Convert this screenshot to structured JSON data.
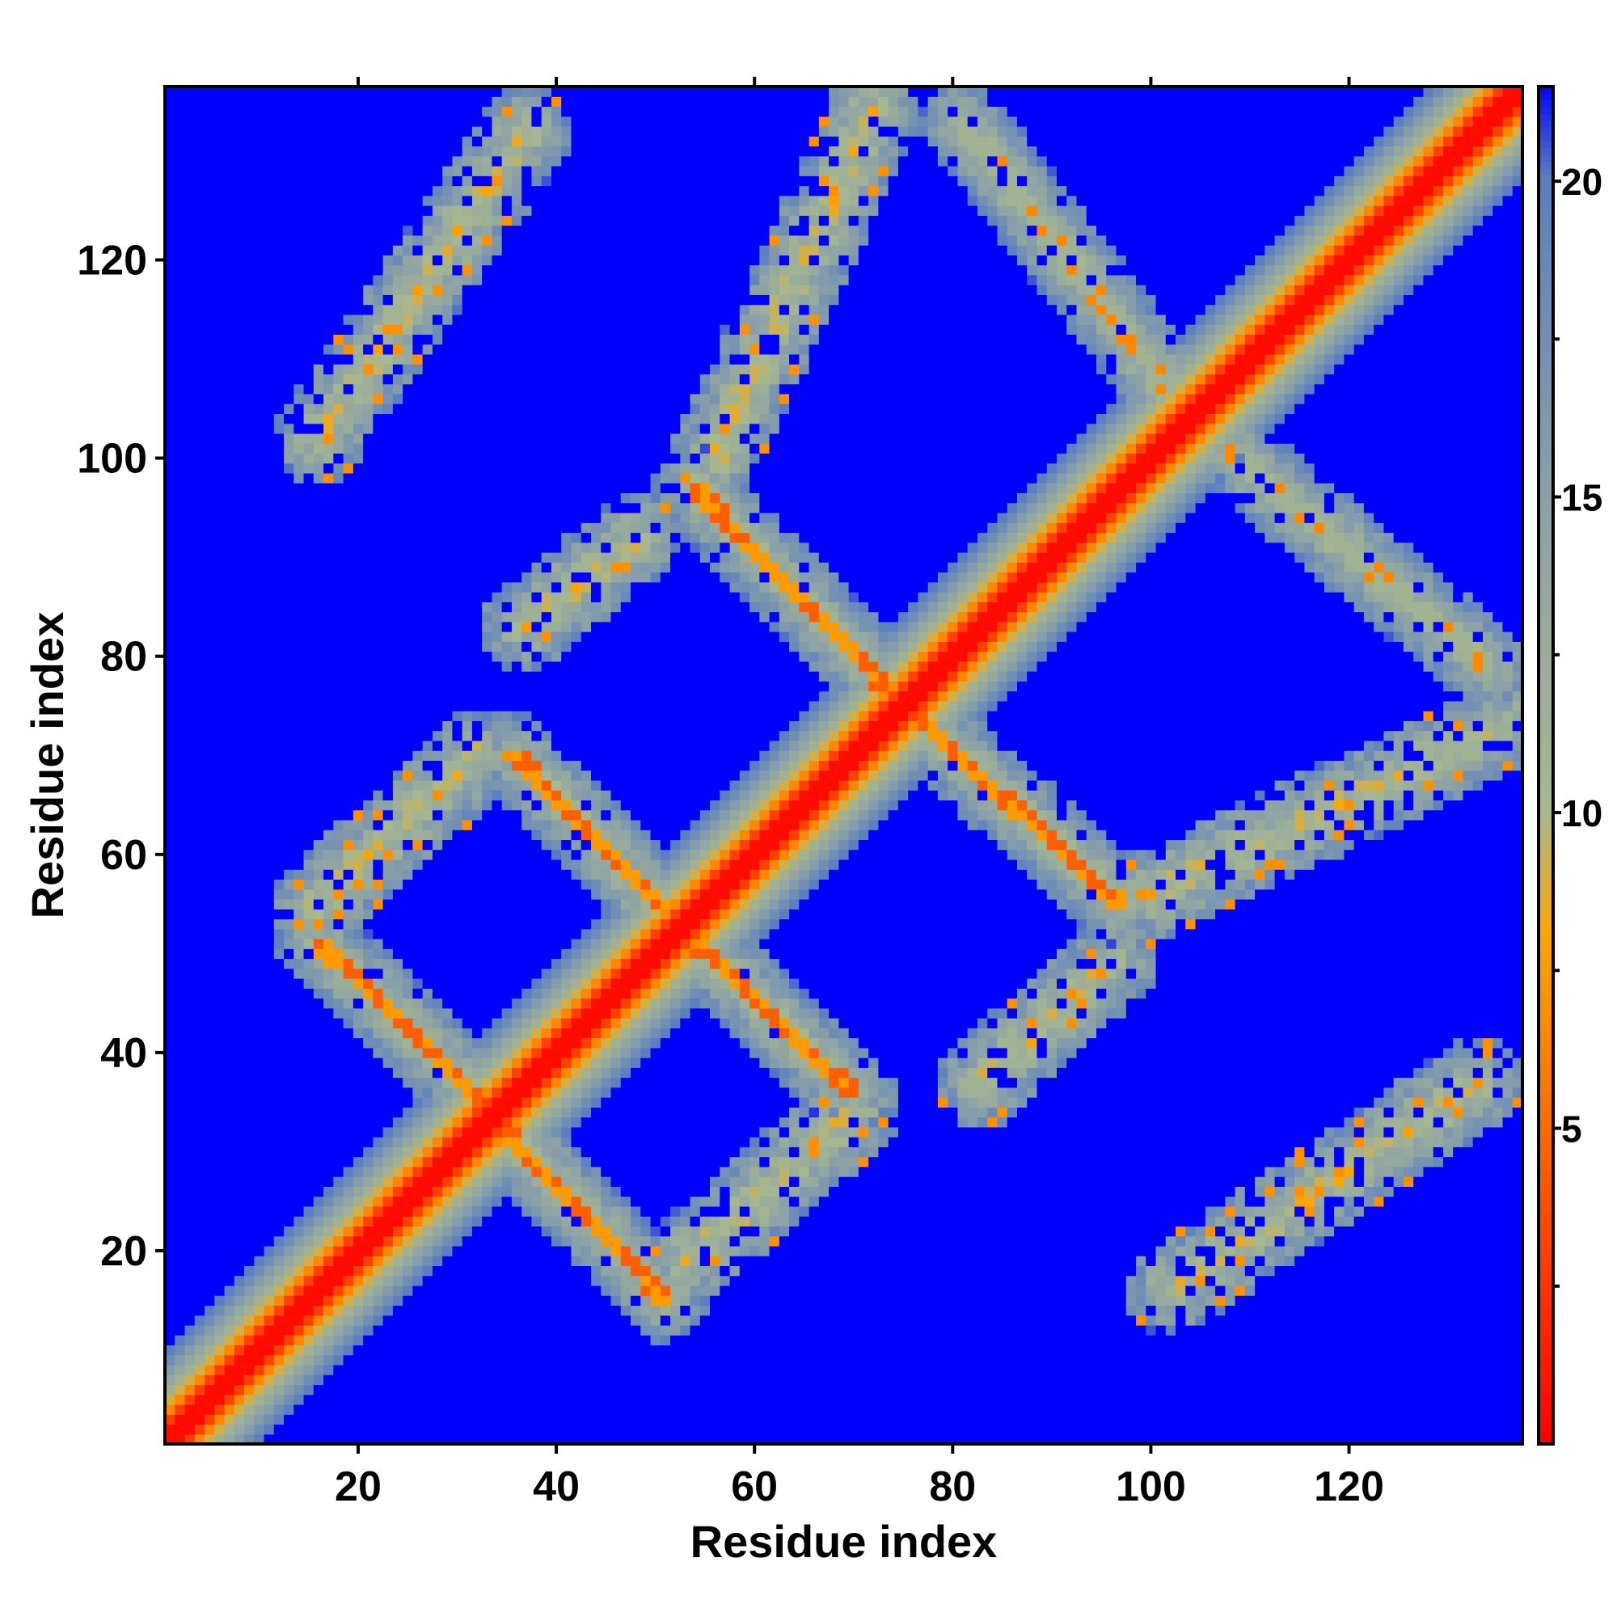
{
  "chart_data": {
    "type": "heatmap",
    "title": "",
    "xlabel": "Residue index",
    "ylabel": "Residue index",
    "xlim": [
      1,
      137
    ],
    "ylim": [
      1,
      137
    ],
    "x_ticks": [
      20,
      40,
      60,
      80,
      100,
      120
    ],
    "y_ticks": [
      20,
      40,
      60,
      80,
      100,
      120
    ],
    "colorbar": {
      "ticks": [
        5,
        10,
        15,
        20
      ],
      "range": [
        0,
        21.5
      ],
      "colors": [
        {
          "value": 0,
          "color": "#ff0000"
        },
        {
          "value": 5,
          "color": "#ff6a00"
        },
        {
          "value": 8,
          "color": "#ffa500"
        },
        {
          "value": 10,
          "color": "#a8b88e"
        },
        {
          "value": 15,
          "color": "#8aa0a8"
        },
        {
          "value": 20,
          "color": "#5b7fc0"
        },
        {
          "value": 21.5,
          "color": "#0000ff"
        }
      ]
    },
    "diagonal": {
      "from": 1,
      "to": 137
    },
    "antidiagonal_bands": [
      {
        "x_start": 16,
        "x_end": 35,
        "y_start": 51,
        "y_end": 33,
        "close": true
      },
      {
        "x_start": 34,
        "x_end": 51,
        "y_start": 33,
        "y_end": 15,
        "close": true
      },
      {
        "x_start": 36,
        "x_end": 53,
        "y_start": 70,
        "y_end": 52,
        "close": true
      },
      {
        "x_start": 53,
        "x_end": 70,
        "y_start": 52,
        "y_end": 36,
        "close": true
      },
      {
        "x_start": 54,
        "x_end": 75,
        "y_start": 97,
        "y_end": 75,
        "close": true
      },
      {
        "x_start": 75,
        "x_end": 97,
        "y_start": 75,
        "y_end": 55,
        "close": true
      },
      {
        "x_start": 81,
        "x_end": 104,
        "y_start": 134,
        "y_end": 104,
        "close": false
      },
      {
        "x_start": 104,
        "x_end": 134,
        "y_start": 104,
        "y_end": 79,
        "close": false
      }
    ],
    "parallel_bands": [
      {
        "x_start": 16,
        "x_end": 32,
        "y_start": 55,
        "y_end": 70
      },
      {
        "x_start": 52,
        "x_end": 70,
        "y_start": 18,
        "y_end": 34
      },
      {
        "x_start": 37,
        "x_end": 48,
        "y_start": 83,
        "y_end": 92
      },
      {
        "x_start": 83,
        "x_end": 96,
        "y_start": 37,
        "y_end": 49
      },
      {
        "x_start": 56,
        "x_end": 72,
        "y_start": 100,
        "y_end": 135
      },
      {
        "x_start": 100,
        "x_end": 136,
        "y_start": 56,
        "y_end": 73
      },
      {
        "x_start": 16,
        "x_end": 37,
        "y_start": 102,
        "y_end": 133
      },
      {
        "x_start": 102,
        "x_end": 133,
        "y_start": 16,
        "y_end": 37
      }
    ],
    "background_value": 21.5
  }
}
